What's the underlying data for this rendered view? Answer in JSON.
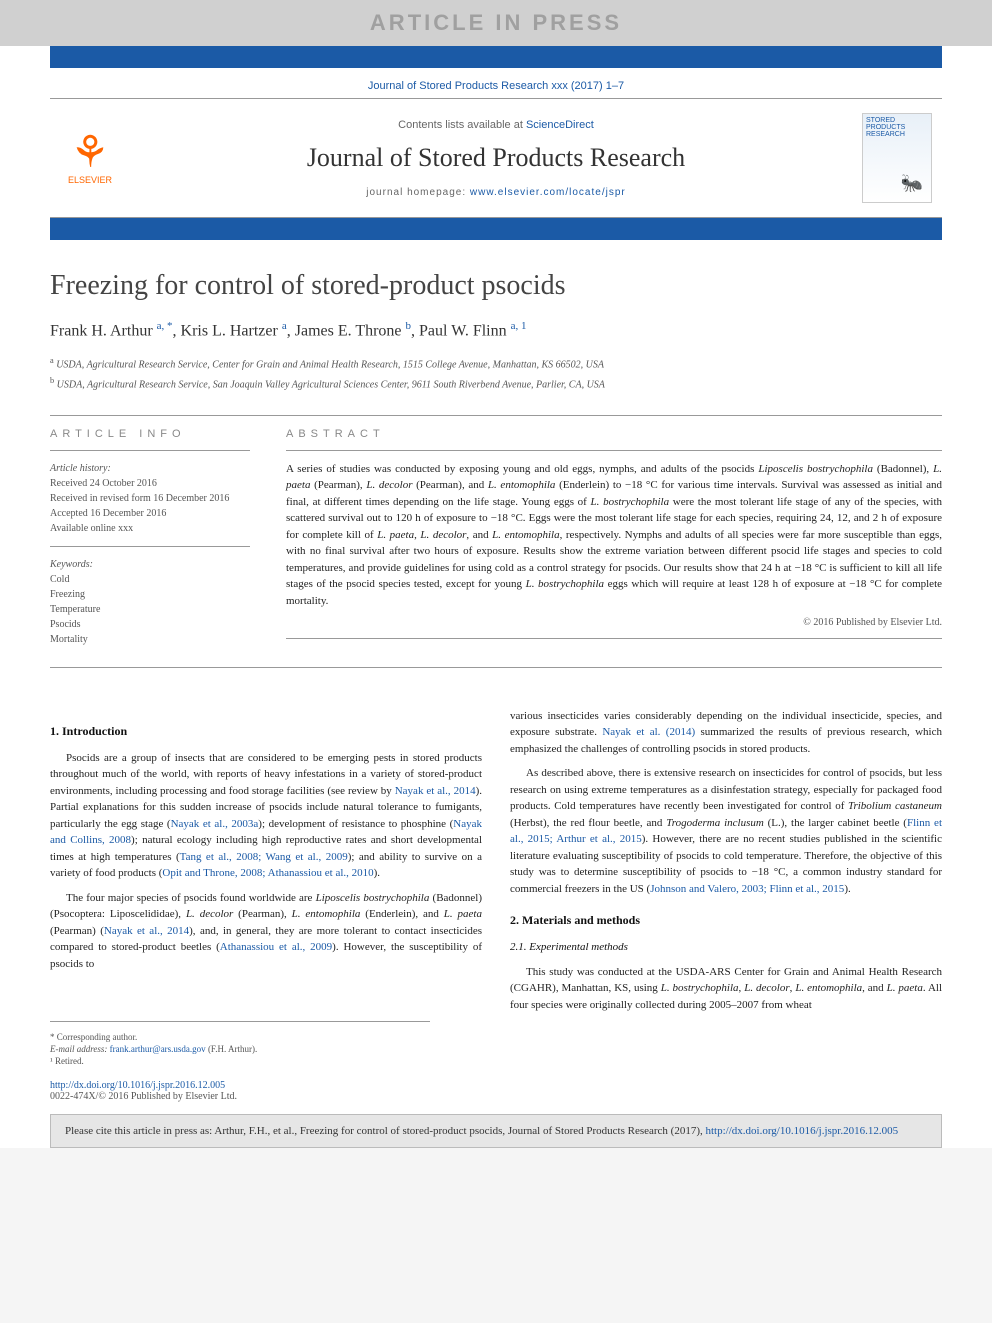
{
  "banner": "ARTICLE IN PRESS",
  "citation_top": "Journal of Stored Products Research xxx (2017) 1–7",
  "header": {
    "contents_prefix": "Contents lists available at ",
    "contents_link": "ScienceDirect",
    "journal_name": "Journal of Stored Products Research",
    "homepage_prefix": "journal homepage: ",
    "homepage_url": "www.elsevier.com/locate/jspr",
    "publisher_name": "ELSEVIER",
    "cover_text": "STORED PRODUCTS RESEARCH"
  },
  "title": "Freezing for control of stored-product psocids",
  "authors_html": "Frank H. Arthur <sup>a, *</sup>, Kris L. Hartzer <sup>a</sup>, James E. Throne <sup>b</sup>, Paul W. Flinn <sup>a, 1</sup>",
  "affiliations": {
    "a": "USDA, Agricultural Research Service, Center for Grain and Animal Health Research, 1515 College Avenue, Manhattan, KS 66502, USA",
    "b": "USDA, Agricultural Research Service, San Joaquin Valley Agricultural Sciences Center, 9611 South Riverbend Avenue, Parlier, CA, USA"
  },
  "article_info": {
    "heading": "ARTICLE INFO",
    "history_label": "Article history:",
    "received": "Received 24 October 2016",
    "revised": "Received in revised form 16 December 2016",
    "accepted": "Accepted 16 December 2016",
    "online": "Available online xxx",
    "keywords_label": "Keywords:",
    "keywords": [
      "Cold",
      "Freezing",
      "Temperature",
      "Psocids",
      "Mortality"
    ]
  },
  "abstract": {
    "heading": "ABSTRACT",
    "text_html": "A series of studies was conducted by exposing young and old eggs, nymphs, and adults of the psocids <em>Liposcelis bostrychophila</em> (Badonnel), <em>L. paeta</em> (Pearman), <em>L. decolor</em> (Pearman), and <em>L. entomophila</em> (Enderlein) to −18 °C for various time intervals. Survival was assessed as initial and final, at different times depending on the life stage. Young eggs of <em>L. bostrychophila</em> were the most tolerant life stage of any of the species, with scattered survival out to 120 h of exposure to −18 °C. Eggs were the most tolerant life stage for each species, requiring 24, 12, and 2 h of exposure for complete kill of <em>L. paeta</em>, <em>L. decolor</em>, and <em>L. entomophila</em>, respectively. Nymphs and adults of all species were far more susceptible than eggs, with no final survival after two hours of exposure. Results show the extreme variation between different psocid life stages and species to cold temperatures, and provide guidelines for using cold as a control strategy for psocids. Our results show that 24 h at −18 °C is sufficient to kill all life stages of the psocid species tested, except for young <em>L. bostrychophila</em> eggs which will require at least 128 h of exposure at −18 °C for complete mortality.",
    "copyright": "© 2016 Published by Elsevier Ltd."
  },
  "body": {
    "left": {
      "h1": "1. Introduction",
      "p1_html": "Psocids are a group of insects that are considered to be emerging pests in stored products throughout much of the world, with reports of heavy infestations in a variety of stored-product environments, including processing and food storage facilities (see review by <a href='#'>Nayak et al., 2014</a>). Partial explanations for this sudden increase of psocids include natural tolerance to fumigants, particularly the egg stage (<a href='#'>Nayak et al., 2003a</a>); development of resistance to phosphine (<a href='#'>Nayak and Collins, 2008</a>); natural ecology including high reproductive rates and short developmental times at high temperatures (<a href='#'>Tang et al., 2008; Wang et al., 2009</a>); and ability to survive on a variety of food products (<a href='#'>Opit and Throne, 2008; Athanassiou et al., 2010</a>).",
      "p2_html": "The four major species of psocids found worldwide are <em>Liposcelis bostrychophila</em> (Badonnel) (Psocoptera: Liposcelididae), <em>L. decolor</em> (Pearman), <em>L. entomophila</em> (Enderlein), and <em>L. paeta</em> (Pearman) (<a href='#'>Nayak et al., 2014</a>), and, in general, they are more tolerant to contact insecticides compared to stored-product beetles (<a href='#'>Athanassiou et al., 2009</a>). However, the susceptibility of psocids to"
    },
    "right": {
      "p1_html": "various insecticides varies considerably depending on the individual insecticide, species, and exposure substrate. <a href='#'>Nayak et al. (2014)</a> summarized the results of previous research, which emphasized the challenges of controlling psocids in stored products.",
      "p2_html": "As described above, there is extensive research on insecticides for control of psocids, but less research on using extreme temperatures as a disinfestation strategy, especially for packaged food products. Cold temperatures have recently been investigated for control of <em>Tribolium castaneum</em> (Herbst), the red flour beetle, and <em>Trogoderma inclusum</em> (L.), the larger cabinet beetle (<a href='#'>Flinn et al., 2015; Arthur et al., 2015</a>). However, there are no recent studies published in the scientific literature evaluating susceptibility of psocids to cold temperature. Therefore, the objective of this study was to determine susceptibility of psocids to −18 °C, a common industry standard for commercial freezers in the US (<a href='#'>Johnson and Valero, 2003; Flinn et al., 2015</a>).",
      "h2": "2. Materials and methods",
      "h3": "2.1. Experimental methods",
      "p3_html": "This study was conducted at the USDA-ARS Center for Grain and Animal Health Research (CGAHR), Manhattan, KS, using <em>L. bostrychophila</em>, <em>L. decolor</em>, <em>L. entomophila</em>, and <em>L. paeta</em>. All four species were originally collected during 2005–2007 from wheat"
    }
  },
  "footnotes": {
    "corr": "* Corresponding author.",
    "email_label": "E-mail address:",
    "email": "frank.arthur@ars.usda.gov",
    "email_attr": "(F.H. Arthur).",
    "note1": "¹ Retired."
  },
  "doi": {
    "url": "http://dx.doi.org/10.1016/j.jspr.2016.12.005",
    "issn_copy": "0022-474X/© 2016 Published by Elsevier Ltd."
  },
  "cite_box": {
    "text_html": "Please cite this article in press as: Arthur, F.H., et al., Freezing for control of stored-product psocids, Journal of Stored Products Research (2017), <a href='#'>http://dx.doi.org/10.1016/j.jspr.2016.12.005</a>"
  },
  "colors": {
    "link": "#1b5aa6",
    "banner_bg": "#d0d0d0",
    "banner_fg": "#a0a0a0",
    "citebox_bg": "#e6e6e6"
  }
}
